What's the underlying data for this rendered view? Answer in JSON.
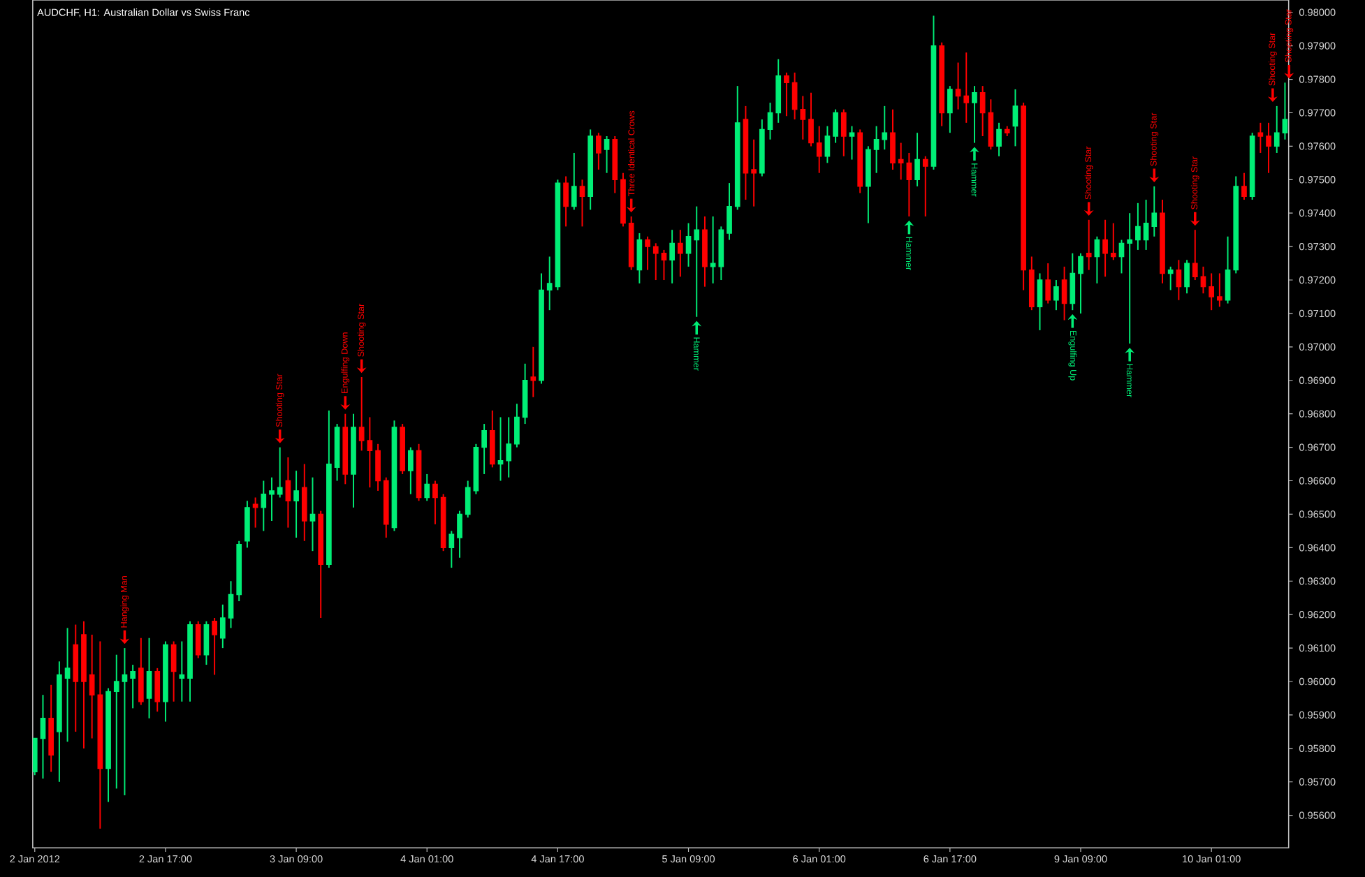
{
  "chart_data": {
    "type": "candlestick",
    "title": "AUDCHF, H1:  Australian Dollar vs Swiss Franc",
    "categories": [
      "2 Jan 2012",
      null,
      null,
      null,
      null,
      null,
      null,
      null,
      null,
      null,
      null,
      null,
      null,
      null,
      null,
      null,
      "2 Jan 17:00",
      null,
      null,
      null,
      null,
      null,
      null,
      null,
      null,
      null,
      null,
      null,
      null,
      null,
      null,
      null,
      "3 Jan 09:00",
      null,
      null,
      null,
      null,
      null,
      null,
      null,
      null,
      null,
      null,
      null,
      null,
      null,
      null,
      null,
      "4 Jan 01:00",
      null,
      null,
      null,
      null,
      null,
      null,
      null,
      null,
      null,
      null,
      null,
      null,
      null,
      null,
      null,
      "4 Jan 17:00",
      null,
      null,
      null,
      null,
      null,
      null,
      null,
      null,
      null,
      null,
      null,
      null,
      null,
      null,
      null,
      "5 Jan 09:00",
      null,
      null,
      null,
      null,
      null,
      null,
      null,
      null,
      null,
      null,
      null,
      null,
      null,
      null,
      null,
      "6 Jan 01:00",
      null,
      null,
      null,
      null,
      null,
      null,
      null,
      null,
      null,
      null,
      null,
      null,
      null,
      null,
      null,
      "6 Jan 17:00",
      null,
      null,
      null,
      null,
      null,
      null,
      null,
      null,
      null,
      null,
      null,
      null,
      null,
      null,
      null,
      "9 Jan 09:00",
      null,
      null,
      null,
      null,
      null,
      null,
      null,
      null,
      null,
      null,
      null,
      null,
      null,
      null,
      null,
      "10 Jan 01:00",
      null,
      null,
      null,
      null,
      null,
      null,
      null,
      null,
      null
    ],
    "ohlc": [
      [
        0.9573,
        0.9583,
        0.9572,
        0.9583
      ],
      [
        0.9583,
        0.9596,
        0.9571,
        0.9589
      ],
      [
        0.9589,
        0.9599,
        0.9573,
        0.9578
      ],
      [
        0.9585,
        0.9606,
        0.957,
        0.9602
      ],
      [
        0.9601,
        0.9616,
        0.9582,
        0.9604
      ],
      [
        0.9611,
        0.9617,
        0.9585,
        0.96
      ],
      [
        0.9614,
        0.9618,
        0.958,
        0.96
      ],
      [
        0.9602,
        0.9614,
        0.9583,
        0.9596
      ],
      [
        0.9596,
        0.9612,
        0.9556,
        0.9574
      ],
      [
        0.9574,
        0.9598,
        0.9564,
        0.9597
      ],
      [
        0.9597,
        0.9608,
        0.9568,
        0.96
      ],
      [
        0.96,
        0.961,
        0.9566,
        0.9602
      ],
      [
        0.9601,
        0.9605,
        0.9592,
        0.9603
      ],
      [
        0.9604,
        0.9613,
        0.9593,
        0.9594
      ],
      [
        0.9595,
        0.9613,
        0.9589,
        0.9603
      ],
      [
        0.9603,
        0.9604,
        0.9591,
        0.9594
      ],
      [
        0.9594,
        0.9612,
        0.9588,
        0.9611
      ],
      [
        0.9611,
        0.9612,
        0.9594,
        0.9603
      ],
      [
        0.9601,
        0.9612,
        0.9594,
        0.9602
      ],
      [
        0.9601,
        0.9618,
        0.9594,
        0.9617
      ],
      [
        0.9617,
        0.9618,
        0.9607,
        0.9608
      ],
      [
        0.9608,
        0.9618,
        0.9605,
        0.9617
      ],
      [
        0.9618,
        0.9619,
        0.9602,
        0.9614
      ],
      [
        0.9613,
        0.9623,
        0.961,
        0.9619
      ],
      [
        0.9619,
        0.963,
        0.9616,
        0.9626
      ],
      [
        0.9626,
        0.9642,
        0.9624,
        0.9641
      ],
      [
        0.9642,
        0.9654,
        0.964,
        0.9652
      ],
      [
        0.9653,
        0.9655,
        0.9646,
        0.9652
      ],
      [
        0.9652,
        0.966,
        0.9645,
        0.9656
      ],
      [
        0.9656,
        0.9661,
        0.9648,
        0.9657
      ],
      [
        0.9656,
        0.967,
        0.9655,
        0.9658
      ],
      [
        0.966,
        0.9667,
        0.9646,
        0.9654
      ],
      [
        0.9654,
        0.9663,
        0.9643,
        0.9657
      ],
      [
        0.9658,
        0.9665,
        0.9642,
        0.9648
      ],
      [
        0.9648,
        0.9661,
        0.9639,
        0.965
      ],
      [
        0.965,
        0.9651,
        0.9619,
        0.9635
      ],
      [
        0.9635,
        0.9681,
        0.9634,
        0.9665
      ],
      [
        0.9664,
        0.9677,
        0.966,
        0.9676
      ],
      [
        0.9676,
        0.968,
        0.9659,
        0.9662
      ],
      [
        0.9662,
        0.968,
        0.9652,
        0.9676
      ],
      [
        0.9676,
        0.9691,
        0.9669,
        0.9672
      ],
      [
        0.9672,
        0.9679,
        0.9658,
        0.9669
      ],
      [
        0.9669,
        0.9671,
        0.9657,
        0.966
      ],
      [
        0.966,
        0.9661,
        0.9643,
        0.9647
      ],
      [
        0.9646,
        0.9678,
        0.9645,
        0.9676
      ],
      [
        0.9676,
        0.9677,
        0.9662,
        0.9663
      ],
      [
        0.9663,
        0.967,
        0.9656,
        0.9669
      ],
      [
        0.9669,
        0.9671,
        0.9654,
        0.9655
      ],
      [
        0.9655,
        0.9662,
        0.9654,
        0.9659
      ],
      [
        0.9659,
        0.966,
        0.9647,
        0.9655
      ],
      [
        0.9655,
        0.9656,
        0.9639,
        0.964
      ],
      [
        0.964,
        0.9645,
        0.9634,
        0.9644
      ],
      [
        0.9643,
        0.9651,
        0.9637,
        0.965
      ],
      [
        0.965,
        0.966,
        0.9649,
        0.9658
      ],
      [
        0.9657,
        0.9671,
        0.9656,
        0.967
      ],
      [
        0.967,
        0.9677,
        0.9662,
        0.9675
      ],
      [
        0.9675,
        0.9681,
        0.9664,
        0.9665
      ],
      [
        0.9665,
        0.9679,
        0.966,
        0.9666
      ],
      [
        0.9666,
        0.9679,
        0.9661,
        0.9671
      ],
      [
        0.9671,
        0.9683,
        0.967,
        0.9679
      ],
      [
        0.9679,
        0.9695,
        0.9677,
        0.969
      ],
      [
        0.9691,
        0.97,
        0.9685,
        0.969
      ],
      [
        0.969,
        0.9722,
        0.9689,
        0.9717
      ],
      [
        0.9717,
        0.9727,
        0.9711,
        0.9719
      ],
      [
        0.9718,
        0.975,
        0.9717,
        0.9749
      ],
      [
        0.9749,
        0.9751,
        0.9736,
        0.9742
      ],
      [
        0.9742,
        0.9758,
        0.9741,
        0.9748
      ],
      [
        0.9748,
        0.975,
        0.9736,
        0.9745
      ],
      [
        0.9745,
        0.9765,
        0.9741,
        0.9763
      ],
      [
        0.9763,
        0.9764,
        0.9753,
        0.9758
      ],
      [
        0.9759,
        0.9763,
        0.9752,
        0.9762
      ],
      [
        0.9762,
        0.9763,
        0.9746,
        0.975
      ],
      [
        0.975,
        0.9752,
        0.9736,
        0.9737
      ],
      [
        0.9737,
        0.9739,
        0.9723,
        0.9724
      ],
      [
        0.9723,
        0.9734,
        0.9719,
        0.9732
      ],
      [
        0.9732,
        0.9733,
        0.9723,
        0.973
      ],
      [
        0.973,
        0.9731,
        0.972,
        0.9728
      ],
      [
        0.9728,
        0.9729,
        0.972,
        0.9726
      ],
      [
        0.9726,
        0.9735,
        0.9719,
        0.9731
      ],
      [
        0.9731,
        0.9735,
        0.9721,
        0.9728
      ],
      [
        0.9728,
        0.9737,
        0.9724,
        0.9733
      ],
      [
        0.9732,
        0.9742,
        0.9709,
        0.9735
      ],
      [
        0.9735,
        0.9739,
        0.9718,
        0.9724
      ],
      [
        0.9724,
        0.9739,
        0.9719,
        0.9725
      ],
      [
        0.9724,
        0.9736,
        0.972,
        0.9735
      ],
      [
        0.9734,
        0.9749,
        0.9732,
        0.9742
      ],
      [
        0.9742,
        0.9778,
        0.9741,
        0.9767
      ],
      [
        0.9768,
        0.9772,
        0.9744,
        0.9752
      ],
      [
        0.9753,
        0.9762,
        0.9742,
        0.9752
      ],
      [
        0.9752,
        0.9768,
        0.9751,
        0.9765
      ],
      [
        0.9765,
        0.9773,
        0.9762,
        0.977
      ],
      [
        0.977,
        0.9786,
        0.9767,
        0.9781
      ],
      [
        0.9781,
        0.9782,
        0.9769,
        0.9779
      ],
      [
        0.9779,
        0.9782,
        0.9768,
        0.9771
      ],
      [
        0.9771,
        0.9775,
        0.9762,
        0.9768
      ],
      [
        0.9768,
        0.9776,
        0.976,
        0.9761
      ],
      [
        0.9761,
        0.9766,
        0.9752,
        0.9757
      ],
      [
        0.9757,
        0.9766,
        0.9755,
        0.9763
      ],
      [
        0.9763,
        0.9771,
        0.9761,
        0.977
      ],
      [
        0.977,
        0.9771,
        0.9757,
        0.9763
      ],
      [
        0.9763,
        0.9766,
        0.9756,
        0.9764
      ],
      [
        0.9764,
        0.9765,
        0.9746,
        0.9748
      ],
      [
        0.9748,
        0.976,
        0.9737,
        0.9759
      ],
      [
        0.9759,
        0.9766,
        0.9752,
        0.9762
      ],
      [
        0.9762,
        0.9772,
        0.9759,
        0.9764
      ],
      [
        0.9764,
        0.9771,
        0.9753,
        0.9755
      ],
      [
        0.9756,
        0.9761,
        0.975,
        0.9755
      ],
      [
        0.9755,
        0.9758,
        0.9739,
        0.975
      ],
      [
        0.975,
        0.9764,
        0.9748,
        0.9756
      ],
      [
        0.9756,
        0.9757,
        0.9739,
        0.9754
      ],
      [
        0.9754,
        0.9799,
        0.9753,
        0.979
      ],
      [
        0.979,
        0.9791,
        0.9766,
        0.977
      ],
      [
        0.977,
        0.9778,
        0.9764,
        0.9777
      ],
      [
        0.9777,
        0.9785,
        0.9771,
        0.9775
      ],
      [
        0.9775,
        0.9788,
        0.9767,
        0.9773
      ],
      [
        0.9773,
        0.9778,
        0.9761,
        0.9776
      ],
      [
        0.9776,
        0.9778,
        0.9763,
        0.977
      ],
      [
        0.977,
        0.9774,
        0.9759,
        0.976
      ],
      [
        0.976,
        0.9767,
        0.9757,
        0.9765
      ],
      [
        0.9765,
        0.9766,
        0.9763,
        0.9764
      ],
      [
        0.9766,
        0.9777,
        0.976,
        0.9772
      ],
      [
        0.9772,
        0.9773,
        0.9717,
        0.9723
      ],
      [
        0.9723,
        0.9727,
        0.9711,
        0.9712
      ],
      [
        0.9712,
        0.9722,
        0.9705,
        0.972
      ],
      [
        0.972,
        0.9725,
        0.9713,
        0.9714
      ],
      [
        0.9714,
        0.972,
        0.9711,
        0.9718
      ],
      [
        0.972,
        0.9724,
        0.9708,
        0.9713
      ],
      [
        0.9713,
        0.9728,
        0.9711,
        0.9722
      ],
      [
        0.9722,
        0.9728,
        0.971,
        0.9727
      ],
      [
        0.9728,
        0.9738,
        0.9723,
        0.9727
      ],
      [
        0.9727,
        0.9733,
        0.9719,
        0.9732
      ],
      [
        0.9732,
        0.9738,
        0.9721,
        0.9728
      ],
      [
        0.9728,
        0.9737,
        0.9726,
        0.9727
      ],
      [
        0.9727,
        0.9732,
        0.9722,
        0.9731
      ],
      [
        0.9731,
        0.974,
        0.9701,
        0.9732
      ],
      [
        0.9732,
        0.9743,
        0.9729,
        0.9736
      ],
      [
        0.9732,
        0.9744,
        0.9729,
        0.9737
      ],
      [
        0.9736,
        0.9748,
        0.9733,
        0.974
      ],
      [
        0.974,
        0.9744,
        0.9719,
        0.9722
      ],
      [
        0.9722,
        0.9724,
        0.9717,
        0.9723
      ],
      [
        0.9723,
        0.9726,
        0.9714,
        0.9718
      ],
      [
        0.9718,
        0.9726,
        0.9716,
        0.9725
      ],
      [
        0.9725,
        0.9735,
        0.972,
        0.9721
      ],
      [
        0.9721,
        0.9724,
        0.9716,
        0.9718
      ],
      [
        0.9718,
        0.9722,
        0.9711,
        0.9715
      ],
      [
        0.9715,
        0.9722,
        0.9712,
        0.9714
      ],
      [
        0.9714,
        0.9733,
        0.9713,
        0.9723
      ],
      [
        0.9723,
        0.9751,
        0.9722,
        0.9748
      ],
      [
        0.9748,
        0.9752,
        0.9744,
        0.9745
      ],
      [
        0.9745,
        0.9764,
        0.9744,
        0.9763
      ],
      [
        0.9764,
        0.9767,
        0.9758,
        0.9763
      ],
      [
        0.9763,
        0.9767,
        0.9752,
        0.976
      ],
      [
        0.976,
        0.9772,
        0.9758,
        0.9764
      ],
      [
        0.9764,
        0.9779,
        0.9762,
        0.9768
      ]
    ],
    "colors": [
      "#00ee76",
      "#00ee76",
      "#ff0000",
      "#00ee76",
      "#00ee76",
      "#ff0000",
      "#ff0000",
      "#ff0000",
      "#ff0000",
      "#00ee76",
      "#00ee76",
      "#00ee76",
      "#00ee76",
      "#ff0000",
      "#00ee76",
      "#ff0000",
      "#00ee76",
      "#ff0000",
      "#00ee76",
      "#00ee76",
      "#ff0000",
      "#00ee76",
      "#ff0000",
      "#00ee76",
      "#00ee76",
      "#00ee76",
      "#00ee76",
      "#ff0000",
      "#00ee76",
      "#00ee76",
      "#00ee76",
      "#ff0000",
      "#00ee76",
      "#ff0000",
      "#00ee76",
      "#ff0000",
      "#00ee76",
      "#00ee76",
      "#ff0000",
      "#00ee76",
      "#ff0000",
      "#ff0000",
      "#ff0000",
      "#ff0000",
      "#00ee76",
      "#ff0000",
      "#00ee76",
      "#ff0000",
      "#00ee76",
      "#ff0000",
      "#ff0000",
      "#00ee76",
      "#00ee76",
      "#00ee76",
      "#00ee76",
      "#00ee76",
      "#ff0000",
      "#00ee76",
      "#00ee76",
      "#00ee76",
      "#00ee76",
      "#ff0000",
      "#00ee76",
      "#00ee76",
      "#00ee76",
      "#ff0000",
      "#00ee76",
      "#ff0000",
      "#00ee76",
      "#ff0000",
      "#00ee76",
      "#ff0000",
      "#ff0000",
      "#ff0000",
      "#00ee76",
      "#ff0000",
      "#ff0000",
      "#ff0000",
      "#00ee76",
      "#ff0000",
      "#00ee76",
      "#00ee76",
      "#ff0000",
      "#00ee76",
      "#00ee76",
      "#00ee76",
      "#00ee76",
      "#ff0000",
      "#ff0000",
      "#00ee76",
      "#00ee76",
      "#00ee76",
      "#ff0000",
      "#ff0000",
      "#ff0000",
      "#ff0000",
      "#ff0000",
      "#00ee76",
      "#00ee76",
      "#ff0000",
      "#00ee76",
      "#ff0000",
      "#00ee76",
      "#00ee76",
      "#00ee76",
      "#ff0000",
      "#ff0000",
      "#ff0000",
      "#00ee76",
      "#ff0000",
      "#00ee76",
      "#ff0000",
      "#00ee76",
      "#ff0000",
      "#ff0000",
      "#00ee76",
      "#ff0000",
      "#ff0000",
      "#00ee76",
      "#ff0000",
      "#00ee76",
      "#ff0000",
      "#ff0000",
      "#00ee76",
      "#ff0000",
      "#00ee76",
      "#ff0000",
      "#00ee76",
      "#00ee76",
      "#ff0000",
      "#00ee76",
      "#ff0000",
      "#ff0000",
      "#00ee76",
      "#00ee76",
      "#00ee76",
      "#00ee76",
      "#00ee76",
      "#ff0000",
      "#00ee76",
      "#ff0000",
      "#00ee76",
      "#ff0000",
      "#ff0000",
      "#ff0000",
      "#ff0000",
      "#00ee76",
      "#00ee76",
      "#ff0000",
      "#00ee76",
      "#ff0000",
      "#ff0000",
      "#00ee76",
      "#00ee76"
    ],
    "ylim": [
      0.95503,
      0.98037
    ],
    "yticks": [
      {
        "value": 0.956,
        "label": "0.95600"
      },
      {
        "value": 0.957,
        "label": "0.95700"
      },
      {
        "value": 0.958,
        "label": "0.95800"
      },
      {
        "value": 0.959,
        "label": "0.95900"
      },
      {
        "value": 0.96,
        "label": "0.96000"
      },
      {
        "value": 0.961,
        "label": "0.96100"
      },
      {
        "value": 0.962,
        "label": "0.96200"
      },
      {
        "value": 0.963,
        "label": "0.96300"
      },
      {
        "value": 0.964,
        "label": "0.96400"
      },
      {
        "value": 0.965,
        "label": "0.96500"
      },
      {
        "value": 0.966,
        "label": "0.96600"
      },
      {
        "value": 0.967,
        "label": "0.96700"
      },
      {
        "value": 0.968,
        "label": "0.96800"
      },
      {
        "value": 0.969,
        "label": "0.96900"
      },
      {
        "value": 0.97,
        "label": "0.97000"
      },
      {
        "value": 0.971,
        "label": "0.97100"
      },
      {
        "value": 0.972,
        "label": "0.97200"
      },
      {
        "value": 0.973,
        "label": "0.97300"
      },
      {
        "value": 0.974,
        "label": "0.97400"
      },
      {
        "value": 0.975,
        "label": "0.97500"
      },
      {
        "value": 0.976,
        "label": "0.97600"
      },
      {
        "value": 0.977,
        "label": "0.97700"
      },
      {
        "value": 0.978,
        "label": "0.97800"
      },
      {
        "value": 0.979,
        "label": "0.97900"
      },
      {
        "value": 0.98,
        "label": "0.98000"
      }
    ],
    "annotations": [
      "Hanging Man",
      "Shooting Star",
      "Engulfing Down",
      "Shooting Star",
      "Three Identical Crows",
      "Hammer",
      "Hammer",
      "Hammer",
      "Engulfing Up",
      "Shooting Star",
      "Hammer",
      "Shooting Star",
      "Shooting Star",
      "Shooting Star",
      "Shooting Star"
    ]
  }
}
